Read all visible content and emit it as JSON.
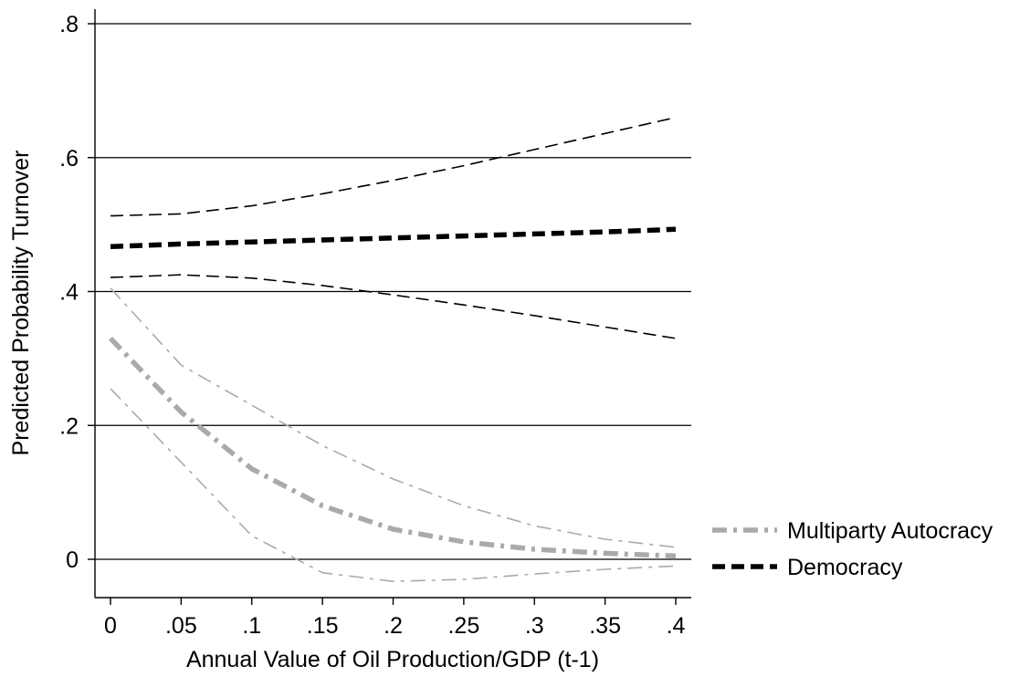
{
  "chart_data": {
    "type": "line",
    "title": "",
    "xlabel": "Annual Value of Oil Production/GDP (t-1)",
    "ylabel": "Predicted Probability Turnover",
    "xlim": [
      0,
      0.4
    ],
    "ylim": [
      -0.05,
      0.8
    ],
    "x_ticks": [
      0,
      0.05,
      0.1,
      0.15,
      0.2,
      0.25,
      0.3,
      0.35,
      0.4
    ],
    "x_tick_labels": [
      "0",
      ".05",
      ".1",
      ".15",
      ".2",
      ".25",
      ".3",
      ".35",
      ".4"
    ],
    "y_ticks": [
      0,
      0.2,
      0.4,
      0.6,
      0.8
    ],
    "y_tick_labels": [
      "0",
      ".2",
      ".4",
      ".6",
      ".8"
    ],
    "grid": "horizontal",
    "legend_position": "right",
    "x": [
      0,
      0.05,
      0.1,
      0.15,
      0.2,
      0.25,
      0.3,
      0.35,
      0.4
    ],
    "series": [
      {
        "name": "Democracy",
        "role": "estimate",
        "color": "#000000",
        "style": "dashed-thick",
        "values": [
          0.467,
          0.471,
          0.474,
          0.477,
          0.48,
          0.483,
          0.486,
          0.489,
          0.493
        ]
      },
      {
        "role": "upper-ci",
        "group": "Democracy",
        "color": "#000000",
        "style": "dashed-thin",
        "values": [
          0.513,
          0.516,
          0.528,
          0.546,
          0.566,
          0.588,
          0.612,
          0.636,
          0.66
        ]
      },
      {
        "role": "lower-ci",
        "group": "Democracy",
        "color": "#000000",
        "style": "dashed-thin",
        "values": [
          0.421,
          0.425,
          0.42,
          0.409,
          0.395,
          0.38,
          0.364,
          0.347,
          0.33
        ]
      },
      {
        "name": "Multiparty Autocracy",
        "role": "estimate",
        "color": "#aaaaaa",
        "style": "dashdot-thick",
        "values": [
          0.33,
          0.22,
          0.135,
          0.08,
          0.045,
          0.026,
          0.015,
          0.009,
          0.005
        ]
      },
      {
        "role": "upper-ci",
        "group": "Multiparty Autocracy",
        "color": "#aaaaaa",
        "style": "dashdot-thin",
        "values": [
          0.405,
          0.29,
          0.23,
          0.17,
          0.12,
          0.08,
          0.05,
          0.03,
          0.018
        ]
      },
      {
        "role": "lower-ci",
        "group": "Multiparty Autocracy",
        "color": "#aaaaaa",
        "style": "dashdot-thin",
        "values": [
          0.255,
          0.145,
          0.035,
          -0.02,
          -0.033,
          -0.03,
          -0.022,
          -0.015,
          -0.01
        ]
      }
    ],
    "legend": [
      {
        "label": "Multiparty Autocracy",
        "color": "#aaaaaa",
        "style": "dashdot-thick"
      },
      {
        "label": "Democracy",
        "color": "#000000",
        "style": "dashed-thick"
      }
    ]
  }
}
